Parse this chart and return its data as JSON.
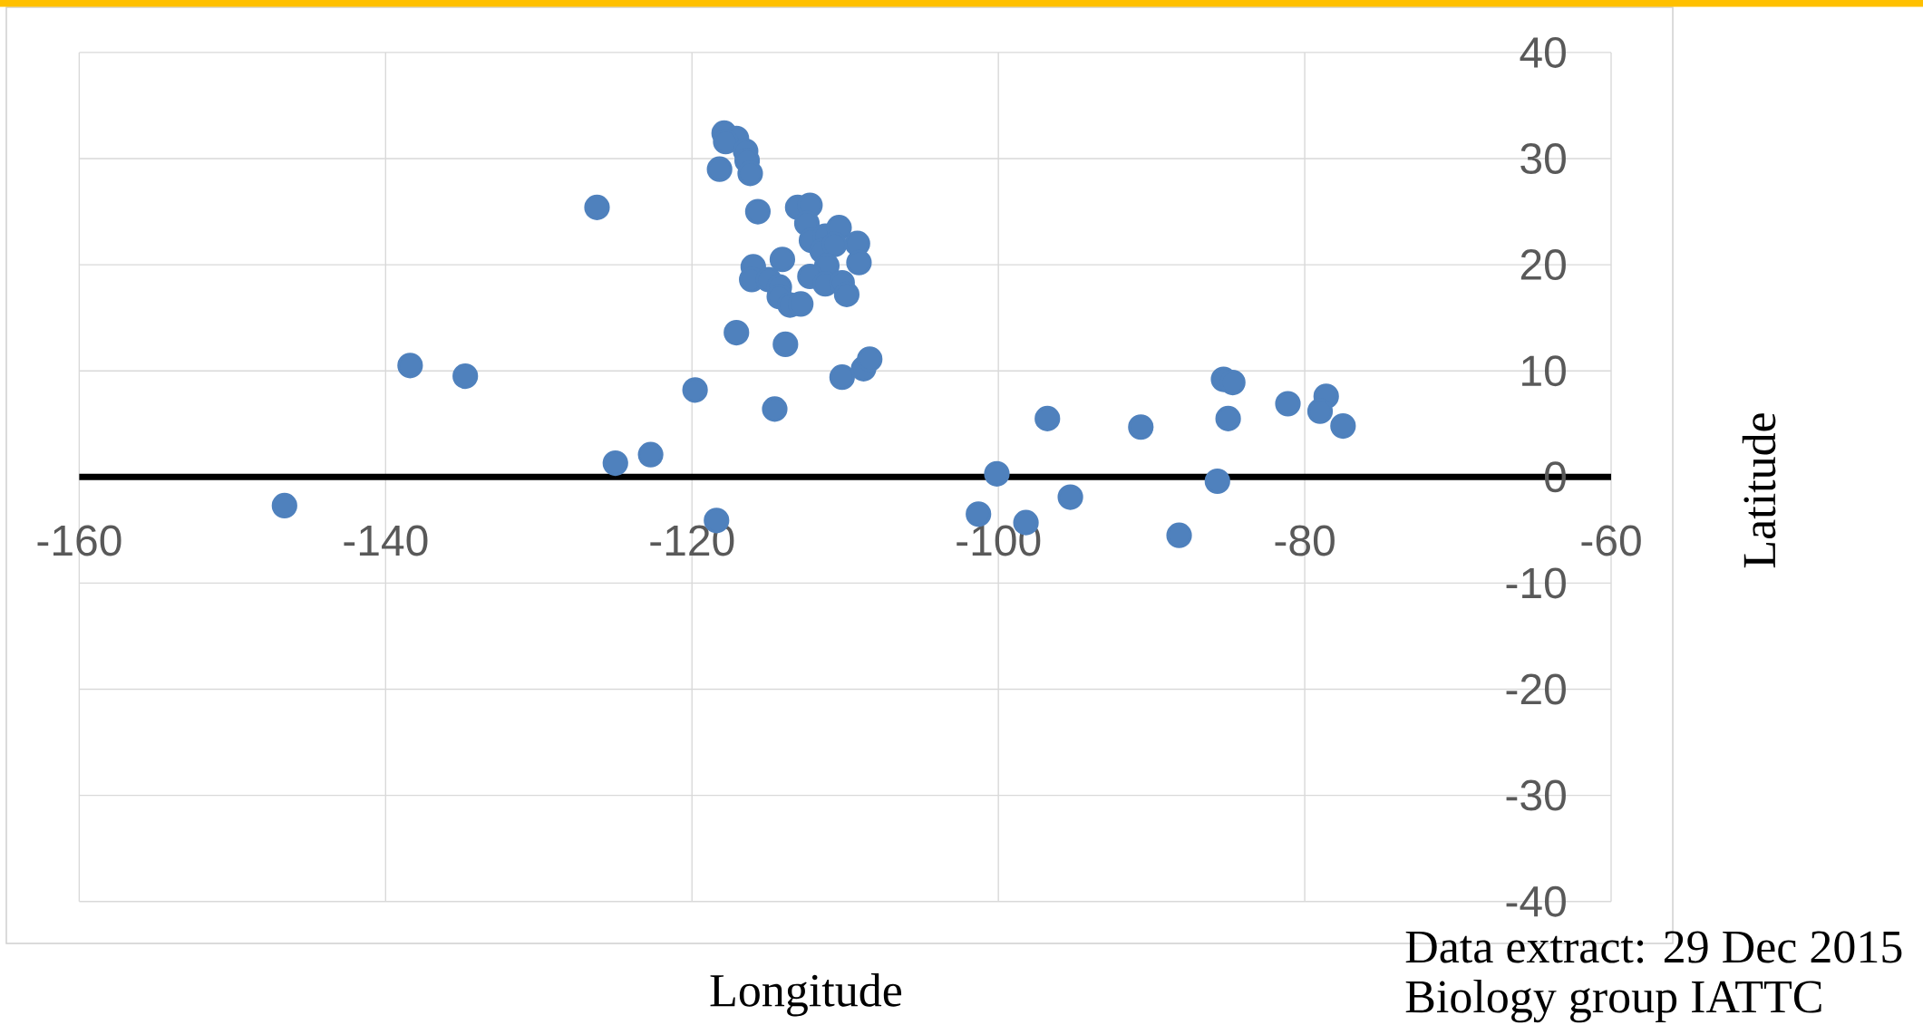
{
  "chart_data": {
    "type": "scatter",
    "xlabel": "Longitude",
    "ylabel": "Latitude",
    "annotations": [
      "Data extract: 29 Dec 2015",
      "Biology group IATTC"
    ],
    "x": [
      -146.6,
      -138.4,
      -134.8,
      -126.2,
      -125.0,
      -122.7,
      -119.8,
      -118.4,
      -118.2,
      -117.9,
      -117.1,
      -117.8,
      -116.5,
      -116.4,
      -116.2,
      -115.7,
      -113.1,
      -112.3,
      -112.5,
      -112.2,
      -111.3,
      -110.4,
      -109.2,
      -109.1,
      -111.5,
      -110.7,
      -111.2,
      -112.3,
      -111.3,
      -110.2,
      -109.9,
      -116.0,
      -116.1,
      -114.1,
      -115.0,
      -114.3,
      -114.3,
      -113.6,
      -112.9,
      -117.1,
      -113.9,
      -114.6,
      -110.2,
      -108.8,
      -108.4,
      -100.1,
      -101.3,
      -98.2,
      -96.8,
      -95.3,
      -90.7,
      -88.2,
      -85.7,
      -85.3,
      -84.7,
      -85.0,
      -81.1,
      -78.6,
      -79.0,
      -77.5
    ],
    "values": [
      -2.7,
      10.5,
      9.5,
      25.4,
      1.3,
      2.1,
      8.2,
      -4.1,
      29.0,
      32.4,
      31.9,
      31.6,
      30.7,
      29.8,
      28.6,
      25.0,
      25.4,
      25.6,
      23.9,
      22.3,
      22.7,
      23.5,
      22.0,
      20.2,
      21.3,
      21.9,
      19.9,
      18.9,
      18.2,
      18.3,
      17.2,
      19.8,
      18.6,
      20.5,
      18.6,
      17.9,
      17.0,
      16.2,
      16.3,
      13.6,
      12.5,
      6.4,
      9.4,
      10.2,
      11.1,
      0.3,
      -3.5,
      -4.3,
      5.5,
      -1.9,
      4.7,
      -5.5,
      -0.4,
      9.2,
      8.9,
      5.5,
      6.9,
      7.6,
      6.2,
      4.8
    ],
    "color": "#4f81bd",
    "marker": "circle",
    "xlim": [
      -160,
      -60
    ],
    "ylim": [
      -40,
      40
    ],
    "xticks": [
      -160,
      -140,
      -120,
      -100,
      -80,
      -60
    ],
    "yticks": [
      -40,
      -30,
      -20,
      -10,
      0,
      10,
      20,
      30,
      40
    ],
    "grid": true
  }
}
